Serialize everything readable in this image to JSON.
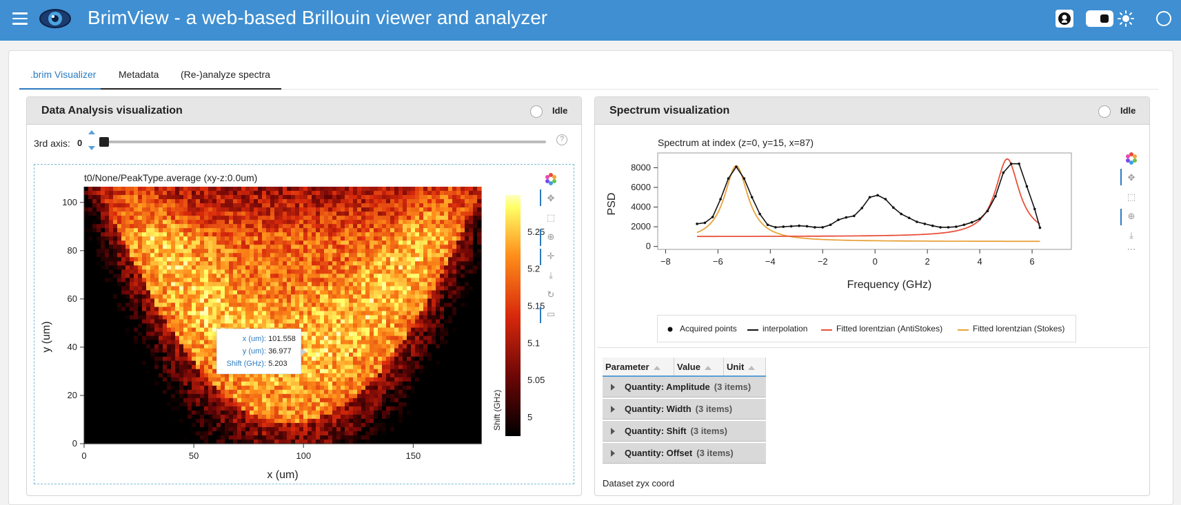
{
  "header": {
    "title": "BrimView - a web-based Brillouin viewer and analyzer",
    "bg_color": "#3f8fd2",
    "icons": [
      "menu-icon",
      "eye-logo",
      "github-icon",
      "theme-toggle",
      "sun-icon",
      "circle-icon"
    ]
  },
  "tabs": [
    {
      "label": ".brim Visualizer",
      "active": true
    },
    {
      "label": "Metadata",
      "active": false
    },
    {
      "label": "(Re-)analyze spectra",
      "active": false
    }
  ],
  "left_panel": {
    "title": "Data Analysis visualization",
    "status": "Idle",
    "slider": {
      "label": "3rd axis:",
      "value": "0",
      "help": "?"
    },
    "heatmap": {
      "title": "t0/None/PeakType.average (xy-z:0.0um)",
      "xlabel": "x (um)",
      "ylabel": "y (um)",
      "xticks": [
        "0",
        "50",
        "100",
        "150"
      ],
      "yticks": [
        "0",
        "20",
        "40",
        "60",
        "80",
        "100"
      ],
      "colorbar_label": "Shift (GHz)",
      "colorbar_ticks": [
        "5",
        "5.05",
        "5.1",
        "5.15",
        "5.2",
        "5.25"
      ],
      "tooltip": [
        {
          "key": "x (um):",
          "value": "101.558"
        },
        {
          "key": "y (um):",
          "value": "36.977"
        },
        {
          "key": "Shift (GHz):",
          "value": "5.203"
        }
      ]
    }
  },
  "right_panel": {
    "title": "Spectrum visualization",
    "status": "Idle",
    "legend": [
      {
        "label": "Acquired points",
        "color": "#111111"
      },
      {
        "label": "interpolation",
        "color": "#111111"
      },
      {
        "label": "Fitted lorentzian (AntiStokes)",
        "color": "#e8503a"
      },
      {
        "label": "Fitted lorentzian (Stokes)",
        "color": "#e8a23a"
      }
    ],
    "table": {
      "headers": [
        "Parameter",
        "Value",
        "Unit"
      ],
      "groups": [
        {
          "name": "Quantity: Amplitude",
          "count": "(3 items)"
        },
        {
          "name": "Quantity: Width",
          "count": "(3 items)"
        },
        {
          "name": "Quantity: Shift",
          "count": "(3 items)"
        },
        {
          "name": "Quantity: Offset",
          "count": "(3 items)"
        }
      ]
    },
    "dataset_label": "Dataset zyx coord"
  },
  "chart_data": {
    "type": "line",
    "title": "Spectrum at index (z=0, y=15, x=87)",
    "xlabel": "Frequency (GHz)",
    "ylabel": "PSD",
    "xlim": [
      -8.3,
      7.5
    ],
    "ylim": [
      -300,
      9500
    ],
    "xticks": [
      "−8",
      "−6",
      "−4",
      "−2",
      "0",
      "2",
      "4",
      "6"
    ],
    "yticks": [
      "0",
      "2000",
      "4000",
      "6000",
      "8000"
    ],
    "series": [
      {
        "name": "Acquired points",
        "color": "#111111",
        "x": [
          -6.8,
          -6.5,
          -6.2,
          -5.9,
          -5.6,
          -5.3,
          -5.0,
          -4.7,
          -4.4,
          -4.1,
          -3.8,
          -3.5,
          -3.2,
          -2.9,
          -2.6,
          -2.3,
          -2.0,
          -1.7,
          -1.4,
          -1.1,
          -0.8,
          -0.5,
          -0.2,
          0.1,
          0.4,
          0.7,
          1.0,
          1.3,
          1.6,
          1.9,
          2.2,
          2.5,
          2.8,
          3.1,
          3.4,
          3.7,
          4.0,
          4.3,
          4.6,
          4.9,
          5.2,
          5.5,
          5.8,
          6.1,
          6.3
        ],
        "y": [
          2300,
          2400,
          3000,
          4800,
          6900,
          8100,
          6900,
          5000,
          3300,
          2200,
          1950,
          2000,
          2050,
          2100,
          2050,
          1950,
          1950,
          2200,
          2700,
          2950,
          3100,
          3900,
          5000,
          5200,
          4800,
          3950,
          3300,
          2900,
          2500,
          2300,
          2100,
          1950,
          1950,
          2000,
          2200,
          2450,
          2800,
          3600,
          5100,
          7500,
          8400,
          8400,
          6100,
          3800,
          1900
        ]
      },
      {
        "name": "Fitted lorentzian (AntiStokes)",
        "color": "#e8503a",
        "x0": 5.05,
        "gamma": 0.55,
        "amplitude": 7900,
        "offset": 1000
      },
      {
        "name": "Fitted lorentzian (Stokes)",
        "color": "#e8a23a",
        "x0": -5.3,
        "gamma": 0.55,
        "amplitude": 7700,
        "offset": 500
      }
    ]
  }
}
